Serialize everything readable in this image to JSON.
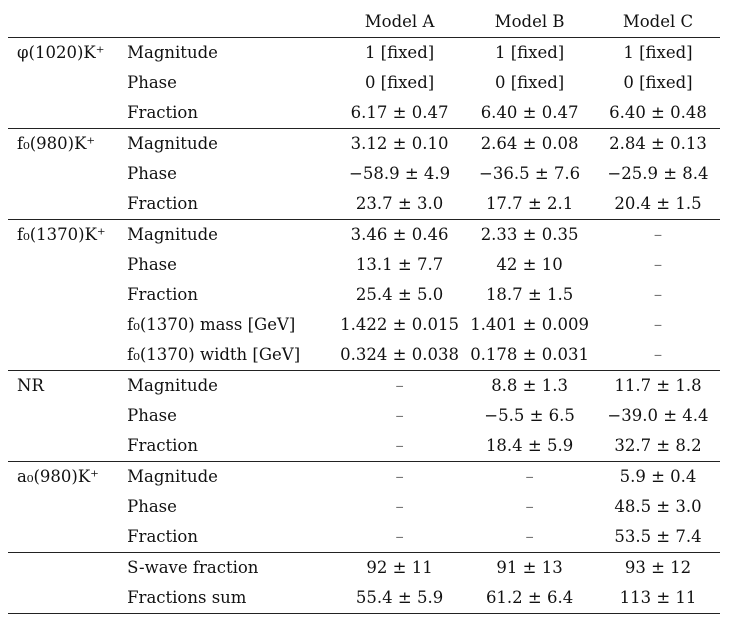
{
  "headers": [
    "Model A",
    "Model B",
    "Model C"
  ],
  "sections": [
    {
      "label": "φ(1020)K⁺",
      "rows": [
        {
          "param": "Magnitude",
          "values": [
            "1 [fixed]",
            "1 [fixed]",
            "1 [fixed]"
          ]
        },
        {
          "param": "Phase",
          "values": [
            "0 [fixed]",
            "0 [fixed]",
            "0 [fixed]"
          ]
        },
        {
          "param": "Fraction",
          "values": [
            "6.17 ± 0.47",
            "6.40 ± 0.47",
            "6.40 ± 0.48"
          ]
        }
      ]
    },
    {
      "label": "f₀(980)K⁺",
      "rows": [
        {
          "param": "Magnitude",
          "values": [
            "3.12 ± 0.10",
            "2.64 ± 0.08",
            "2.84 ± 0.13"
          ]
        },
        {
          "param": "Phase",
          "values": [
            "−58.9 ± 4.9",
            "−36.5 ± 7.6",
            "−25.9 ± 8.4"
          ]
        },
        {
          "param": "Fraction",
          "values": [
            "23.7 ± 3.0",
            "17.7 ± 2.1",
            "20.4 ± 1.5"
          ]
        }
      ]
    },
    {
      "label": "f₀(1370)K⁺",
      "rows": [
        {
          "param": "Magnitude",
          "values": [
            "3.46 ± 0.46",
            "2.33 ± 0.35",
            "–"
          ]
        },
        {
          "param": "Phase",
          "values": [
            "13.1 ± 7.7",
            "42 ± 10",
            "–"
          ]
        },
        {
          "param": "Fraction",
          "values": [
            "25.4 ± 5.0",
            "18.7 ± 1.5",
            "–"
          ]
        },
        {
          "param": "f₀(1370) mass [GeV]",
          "values": [
            "1.422 ± 0.015",
            "1.401 ± 0.009",
            "–"
          ]
        },
        {
          "param": "f₀(1370) width [GeV]",
          "values": [
            "0.324 ± 0.038",
            "0.178 ± 0.031",
            "–"
          ]
        }
      ]
    },
    {
      "label": "NR",
      "rows": [
        {
          "param": "Magnitude",
          "values": [
            "–",
            "8.8 ± 1.3",
            "11.7 ± 1.8"
          ]
        },
        {
          "param": "Phase",
          "values": [
            "–",
            "−5.5 ± 6.5",
            "−39.0 ± 4.4"
          ]
        },
        {
          "param": "Fraction",
          "values": [
            "–",
            "18.4 ± 5.9",
            "32.7 ± 8.2"
          ]
        }
      ]
    },
    {
      "label": "a₀(980)K⁺",
      "rows": [
        {
          "param": "Magnitude",
          "values": [
            "–",
            "–",
            "5.9 ± 0.4"
          ]
        },
        {
          "param": "Phase",
          "values": [
            "–",
            "–",
            "48.5 ± 3.0"
          ]
        },
        {
          "param": "Fraction",
          "values": [
            "–",
            "–",
            "53.5 ± 7.4"
          ]
        }
      ]
    },
    {
      "label": "",
      "rows": [
        {
          "param": "S-wave fraction",
          "values": [
            "92 ± 11",
            "91 ± 13",
            "93 ± 12"
          ]
        },
        {
          "param": "Fractions sum",
          "values": [
            "55.4 ± 5.9",
            "61.2 ± 6.4",
            "113 ± 11"
          ]
        }
      ]
    }
  ]
}
